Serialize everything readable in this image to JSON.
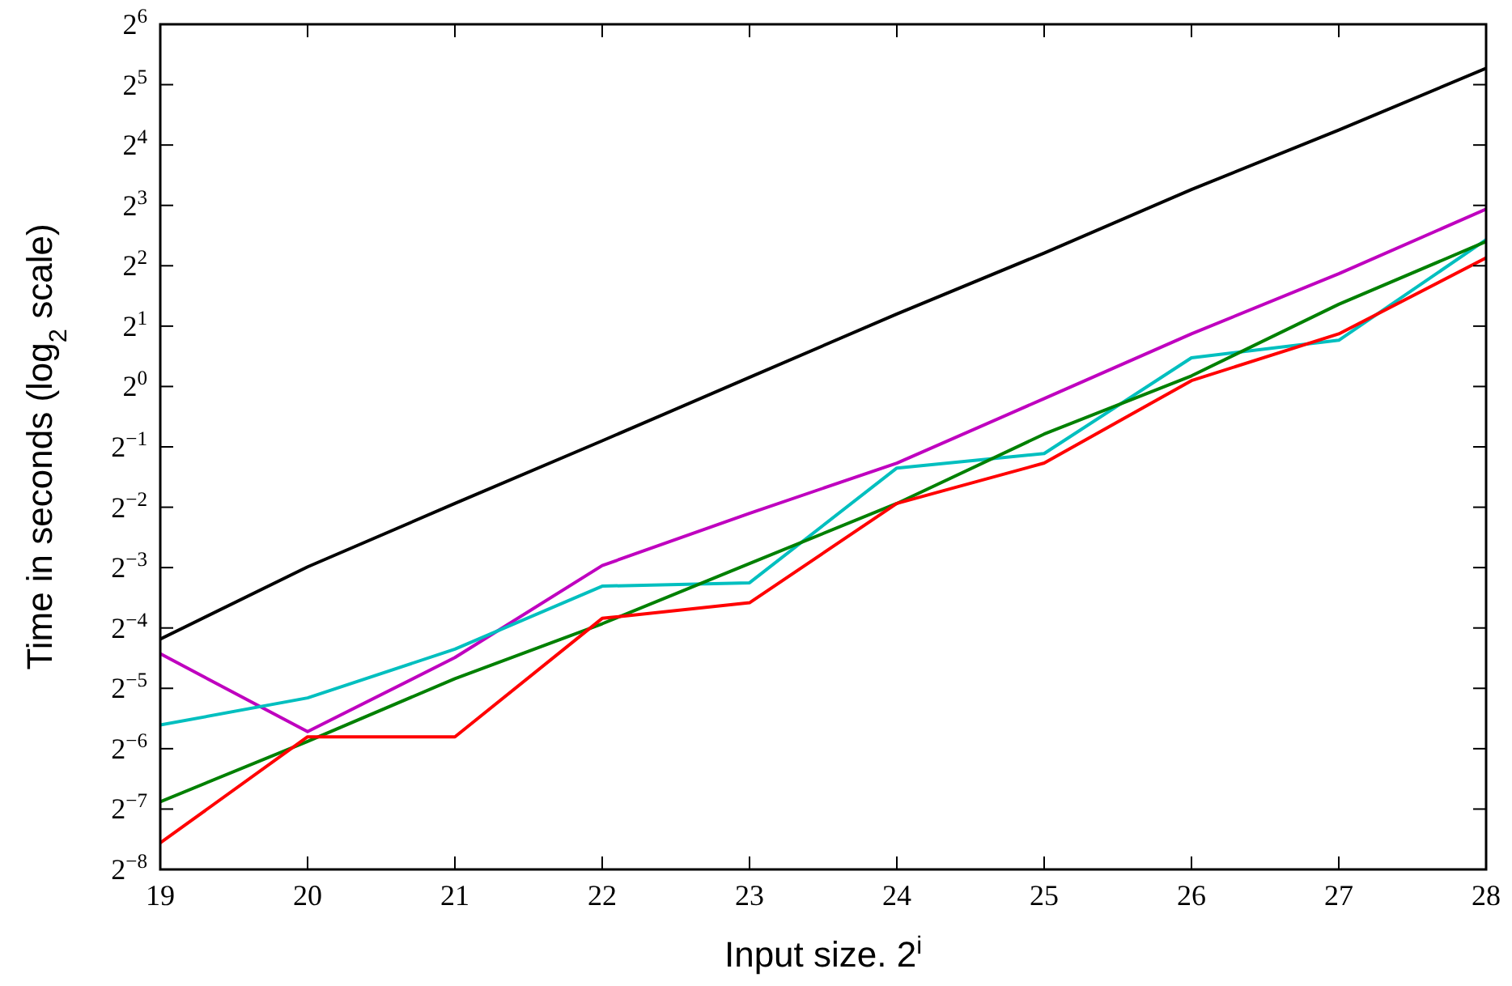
{
  "chart_data": {
    "type": "line",
    "xlabel": "Input size. 2$^{i}$",
    "ylabel": "Time in seconds (log$_{2}$ scale)",
    "log": true,
    "grid": false,
    "line_style": "solid",
    "marker": "none",
    "x": [
      19,
      20,
      21,
      22,
      23,
      24,
      25,
      26,
      27,
      28
    ],
    "xlim": [
      19,
      28
    ],
    "xticks": [
      19,
      20,
      21,
      22,
      23,
      24,
      25,
      26,
      27,
      28
    ],
    "ylim": [
      0.00390625,
      64
    ],
    "yticks": [
      {
        "value": 0.00390625,
        "label": "2$^{−8}$"
      },
      {
        "value": 0.0078125,
        "label": "2$^{−7}$"
      },
      {
        "value": 0.015625,
        "label": "2$^{−6}$"
      },
      {
        "value": 0.03125,
        "label": "2$^{−5}$"
      },
      {
        "value": 0.0625,
        "label": "2$^{−4}$"
      },
      {
        "value": 0.125,
        "label": "2$^{−3}$"
      },
      {
        "value": 0.25,
        "label": "2$^{−2}$"
      },
      {
        "value": 0.5,
        "label": "2$^{−1}$"
      },
      {
        "value": 1,
        "label": "2$^{0}$"
      },
      {
        "value": 2,
        "label": "2$^{1}$"
      },
      {
        "value": 4,
        "label": "2$^{2}$"
      },
      {
        "value": 8,
        "label": "2$^{3}$"
      },
      {
        "value": 16,
        "label": "2$^{4}$"
      },
      {
        "value": 32,
        "label": "2$^{5}$"
      },
      {
        "value": 64,
        "label": "2$^{6}$"
      }
    ],
    "series": [
      {
        "color": "#000000",
        "values": [
          0.055,
          0.126,
          0.261,
          0.536,
          1.11,
          2.3,
          4.63,
          9.6,
          19.0,
          38.6
        ]
      },
      {
        "color": "#bf00bf",
        "values": [
          0.0465,
          0.019,
          0.0445,
          0.128,
          0.233,
          0.415,
          0.87,
          1.83,
          3.65,
          7.67
        ]
      },
      {
        "color": "#00bfbf",
        "values": [
          0.0205,
          0.028,
          0.049,
          0.101,
          0.105,
          0.392,
          0.463,
          1.39,
          1.7,
          5.39
        ]
      },
      {
        "color": "#008000",
        "values": [
          0.0085,
          0.017,
          0.0349,
          0.0656,
          0.131,
          0.261,
          0.579,
          1.13,
          2.57,
          5.28
        ]
      },
      {
        "color": "#ff0000",
        "values": [
          0.0053,
          0.0179,
          0.0179,
          0.0698,
          0.0835,
          0.261,
          0.415,
          1.07,
          1.83,
          4.38
        ]
      }
    ]
  }
}
